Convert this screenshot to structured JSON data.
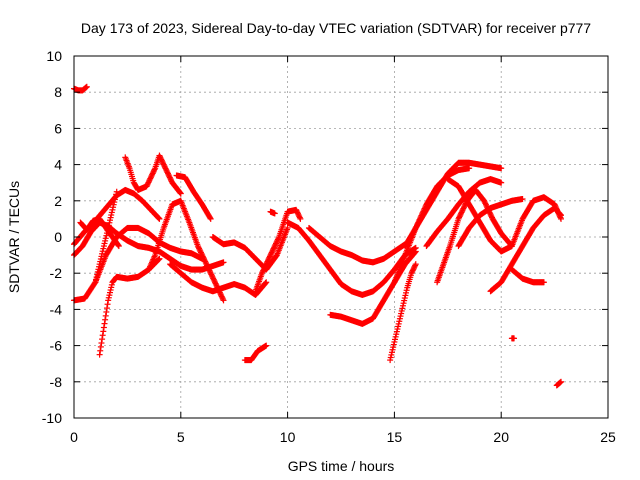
{
  "chart_data": {
    "type": "scatter",
    "title": "Day 173 of 2023, Sidereal Day-to-day VTEC variation (SDTVAR) for receiver p777",
    "xlabel": "GPS time / hours",
    "ylabel": "SDTVAR / TECUs",
    "xlim": [
      0,
      25
    ],
    "ylim": [
      -10,
      10
    ],
    "xticks": [
      0,
      5,
      10,
      15,
      20,
      25
    ],
    "yticks": [
      -10,
      -8,
      -6,
      -4,
      -2,
      0,
      2,
      4,
      6,
      8,
      10
    ],
    "grid": true,
    "marker": "+",
    "series_color": "#ff0000",
    "series": [
      {
        "name": "s1",
        "x": [
          0.0,
          0.2,
          0.4,
          0.6
        ],
        "y": [
          8.2,
          8.1,
          8.1,
          8.3
        ]
      },
      {
        "name": "s2",
        "x": [
          0.0,
          0.5,
          1.0,
          1.5,
          2.0,
          2.5,
          3.0,
          3.5,
          4.0,
          4.5,
          5.0,
          5.5,
          6.0
        ],
        "y": [
          -3.5,
          -3.4,
          -2.5,
          -1.0,
          0.0,
          0.5,
          0.5,
          0.2,
          -0.3,
          -0.6,
          -0.8,
          -0.9,
          -1.2
        ]
      },
      {
        "name": "s3",
        "x": [
          0.0,
          0.4,
          0.8,
          1.2,
          1.6,
          2.0,
          2.5,
          3.0,
          3.5,
          4.0,
          4.5,
          5.0,
          5.5,
          6.0,
          6.5,
          7.0
        ],
        "y": [
          -1.0,
          -0.5,
          0.3,
          0.8,
          0.6,
          0.2,
          -0.2,
          -0.5,
          -0.6,
          -0.8,
          -1.2,
          -1.6,
          -1.8,
          -1.8,
          -1.6,
          -1.4
        ]
      },
      {
        "name": "s4",
        "x": [
          0.0,
          0.5,
          1.0,
          1.5,
          2.0,
          2.4,
          2.8,
          3.2,
          3.6,
          4.0
        ],
        "y": [
          -0.4,
          0.3,
          0.9,
          1.6,
          2.3,
          2.6,
          2.4,
          2.0,
          1.5,
          1.0
        ]
      },
      {
        "name": "s5",
        "x": [
          1.2,
          1.4,
          1.6,
          1.8,
          2.0,
          2.5,
          3.0,
          3.5,
          4.0
        ],
        "y": [
          -6.5,
          -5.0,
          -3.5,
          -2.5,
          -2.2,
          -2.3,
          -2.2,
          -1.8,
          -1.2
        ]
      },
      {
        "name": "s6",
        "x": [
          2.4,
          2.6,
          2.8,
          3.0,
          3.4,
          3.8,
          4.0,
          4.2,
          4.6,
          5.0
        ],
        "y": [
          4.4,
          3.8,
          3.0,
          2.6,
          2.8,
          3.8,
          4.5,
          4.0,
          3.0,
          2.4
        ]
      },
      {
        "name": "s7",
        "x": [
          4.8,
          5.2,
          5.6,
          6.0,
          6.4
        ],
        "y": [
          3.4,
          3.3,
          2.5,
          1.8,
          1.0
        ]
      },
      {
        "name": "s8",
        "x": [
          3.5,
          3.8,
          4.2,
          4.6,
          5.0,
          5.4,
          5.8,
          6.2,
          6.6,
          7.0
        ],
        "y": [
          -1.8,
          -1.0,
          0.5,
          1.8,
          2.0,
          0.8,
          -0.5,
          -1.5,
          -2.5,
          -3.5
        ]
      },
      {
        "name": "s9",
        "x": [
          4.5,
          5.0,
          5.5,
          6.0,
          6.5,
          7.0,
          7.5,
          8.0,
          8.5,
          9.0
        ],
        "y": [
          -1.5,
          -2.0,
          -2.5,
          -2.8,
          -3.0,
          -2.8,
          -2.6,
          -2.8,
          -3.2,
          -2.5
        ]
      },
      {
        "name": "s10",
        "x": [
          6.5,
          7.0,
          7.5,
          8.0,
          8.5,
          9.0,
          9.5,
          10.0
        ],
        "y": [
          0.0,
          -0.4,
          -0.3,
          -0.6,
          -1.2,
          -1.8,
          -1.0,
          0.5
        ]
      },
      {
        "name": "s11",
        "x": [
          8.5,
          8.8,
          9.2,
          9.6,
          10.0,
          10.4,
          10.6
        ],
        "y": [
          -3.0,
          -2.0,
          -1.0,
          0.0,
          1.4,
          1.5,
          1.0
        ]
      },
      {
        "name": "s12",
        "x": [
          8.0,
          8.3,
          8.6,
          9.0
        ],
        "y": [
          -6.8,
          -6.8,
          -6.3,
          -6.0
        ]
      },
      {
        "name": "s13",
        "x": [
          9.2,
          9.4
        ],
        "y": [
          1.4,
          1.3
        ]
      },
      {
        "name": "s14",
        "x": [
          10.0,
          10.5,
          11.0,
          11.5,
          12.0,
          12.5,
          13.0,
          13.5,
          14.0,
          14.5,
          15.0,
          15.5,
          16.0
        ],
        "y": [
          0.8,
          0.5,
          -0.2,
          -1.0,
          -1.8,
          -2.6,
          -3.0,
          -3.2,
          -3.0,
          -2.5,
          -1.8,
          -1.0,
          -0.6
        ]
      },
      {
        "name": "s15",
        "x": [
          11.0,
          11.5,
          12.0,
          12.5,
          13.0,
          13.5,
          14.0,
          14.5,
          15.0,
          15.5
        ],
        "y": [
          0.5,
          0.0,
          -0.5,
          -0.8,
          -1.0,
          -1.3,
          -1.4,
          -1.2,
          -0.8,
          -0.4
        ]
      },
      {
        "name": "s16",
        "x": [
          12.0,
          12.5,
          13.0,
          13.5,
          14.0,
          14.5,
          15.0,
          15.5,
          16.0
        ],
        "y": [
          -4.3,
          -4.4,
          -4.6,
          -4.8,
          -4.5,
          -3.5,
          -2.5,
          -1.5,
          -0.8
        ]
      },
      {
        "name": "s17",
        "x": [
          14.8,
          15.0,
          15.2,
          15.4,
          15.6,
          15.8,
          16.0
        ],
        "y": [
          -6.8,
          -5.8,
          -4.8,
          -3.8,
          -2.8,
          -2.0,
          -1.5
        ]
      },
      {
        "name": "s18",
        "x": [
          15.0,
          15.5,
          16.0,
          16.5,
          17.0,
          17.5,
          18.0,
          18.5
        ],
        "y": [
          -2.5,
          -1.0,
          0.5,
          1.8,
          2.8,
          3.4,
          3.7,
          3.8
        ]
      },
      {
        "name": "s19",
        "x": [
          15.5,
          16.0,
          16.5,
          17.0,
          17.5,
          18.0,
          18.5,
          19.0,
          19.5,
          20.0
        ],
        "y": [
          -0.5,
          0.5,
          1.5,
          2.5,
          3.5,
          4.1,
          4.1,
          4.0,
          3.9,
          3.8
        ]
      },
      {
        "name": "s20",
        "x": [
          16.5,
          17.0,
          17.5,
          18.0,
          18.5,
          19.0,
          19.5,
          20.0
        ],
        "y": [
          -0.5,
          0.3,
          1.0,
          1.8,
          2.5,
          3.0,
          3.2,
          3.0
        ]
      },
      {
        "name": "s21",
        "x": [
          17.0,
          17.3,
          17.6,
          18.0,
          18.4,
          18.8,
          19.2,
          19.6,
          20.0,
          20.5
        ],
        "y": [
          -2.5,
          -1.5,
          -0.5,
          1.0,
          2.0,
          2.6,
          2.0,
          1.0,
          0.2,
          -0.5
        ]
      },
      {
        "name": "s22",
        "x": [
          17.5,
          18.0,
          18.5,
          19.0,
          19.5,
          20.0,
          20.5,
          21.0,
          21.5,
          22.0,
          22.5,
          22.8
        ],
        "y": [
          3.2,
          2.8,
          1.8,
          0.8,
          -0.2,
          -0.8,
          -0.5,
          1.0,
          2.0,
          2.2,
          1.8,
          1.0
        ]
      },
      {
        "name": "s23",
        "x": [
          19.5,
          20.0,
          20.5,
          21.0,
          21.5,
          22.0,
          22.5,
          22.8
        ],
        "y": [
          -3.0,
          -2.5,
          -1.5,
          -0.5,
          0.5,
          1.2,
          1.6,
          1.2
        ]
      },
      {
        "name": "s24",
        "x": [
          20.5,
          21.0,
          21.5,
          22.0
        ],
        "y": [
          -1.8,
          -2.3,
          -2.5,
          -2.5
        ]
      },
      {
        "name": "s25",
        "x": [
          18.0,
          18.5,
          19.0,
          19.5,
          20.0,
          20.5,
          21.0
        ],
        "y": [
          -0.5,
          0.5,
          1.2,
          1.6,
          1.8,
          2.0,
          2.1
        ]
      },
      {
        "name": "s26",
        "x": [
          20.5,
          20.6
        ],
        "y": [
          -5.6,
          -5.6
        ]
      },
      {
        "name": "s27",
        "x": [
          22.6,
          22.8
        ],
        "y": [
          -8.2,
          -8.0
        ]
      },
      {
        "name": "s28",
        "x": [
          1.0,
          1.2,
          1.4,
          1.6,
          1.8,
          2.0
        ],
        "y": [
          -2.5,
          -1.5,
          -0.5,
          0.5,
          1.5,
          2.5
        ]
      },
      {
        "name": "s29",
        "x": [
          0.3,
          0.6,
          0.9,
          1.2,
          1.5,
          1.8,
          2.1
        ],
        "y": [
          0.8,
          0.4,
          0.9,
          1.0,
          0.5,
          0.0,
          -0.5
        ]
      }
    ]
  }
}
